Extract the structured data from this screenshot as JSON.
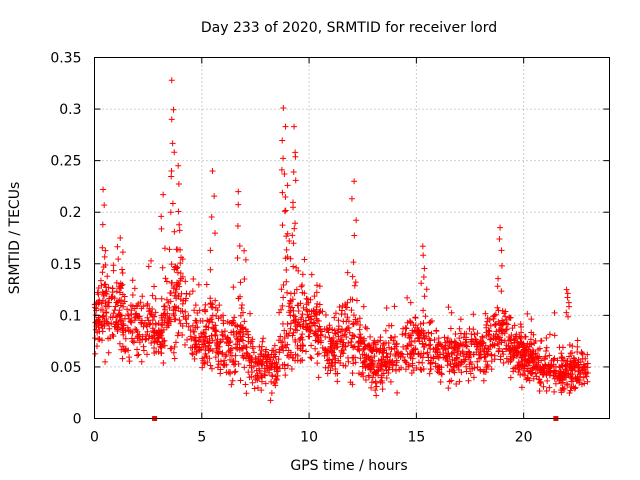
{
  "chart_data": {
    "type": "scatter",
    "title": "Day 233 of 2020, SRMTID for receiver lord",
    "xlabel": "GPS time / hours",
    "ylabel": "SRMTID / TECUs",
    "xlim": [
      0,
      24
    ],
    "ylim": [
      0,
      0.35
    ],
    "xticks": [
      0,
      5,
      10,
      15,
      20
    ],
    "xtick_labels": [
      "0",
      "5",
      "10",
      "15",
      "20"
    ],
    "yticks": [
      0,
      0.05,
      0.1,
      0.15,
      0.2,
      0.25,
      0.3,
      0.35
    ],
    "ytick_labels": [
      "0",
      "0.05",
      "0.1",
      "0.15",
      "0.2",
      "0.25",
      "0.3",
      "0.35"
    ],
    "grid": true,
    "marker": "plus",
    "color": "#ff0000",
    "gap_markers_x": [
      2.8,
      21.5
    ],
    "peaks": [
      {
        "x": 3.6,
        "y": 0.328
      },
      {
        "x": 3.6,
        "y": 0.29
      },
      {
        "x": 8.8,
        "y": 0.301
      },
      {
        "x": 9.3,
        "y": 0.283
      },
      {
        "x": 8.9,
        "y": 0.283
      },
      {
        "x": 9.35,
        "y": 0.258
      },
      {
        "x": 3.9,
        "y": 0.245
      },
      {
        "x": 5.5,
        "y": 0.24
      },
      {
        "x": 8.85,
        "y": 0.237
      },
      {
        "x": 12.1,
        "y": 0.23
      },
      {
        "x": 0.4,
        "y": 0.222
      },
      {
        "x": 6.7,
        "y": 0.22
      },
      {
        "x": 3.2,
        "y": 0.217
      },
      {
        "x": 18.9,
        "y": 0.185
      },
      {
        "x": 15.3,
        "y": 0.167
      },
      {
        "x": 1.2,
        "y": 0.175
      },
      {
        "x": 22.0,
        "y": 0.125
      }
    ],
    "envelope": {
      "x": [
        0,
        0.5,
        1,
        1.5,
        2,
        2.5,
        3,
        3.5,
        4,
        4.5,
        5,
        5.5,
        6,
        6.5,
        7,
        7.5,
        8,
        8.5,
        9,
        9.5,
        10,
        10.5,
        11,
        11.5,
        12,
        12.5,
        13,
        13.5,
        14,
        14.5,
        15,
        15.5,
        16,
        16.5,
        17,
        17.5,
        18,
        18.5,
        19,
        19.5,
        20,
        20.5,
        21,
        21.5,
        22,
        22.5,
        23
      ],
      "center": [
        0.095,
        0.11,
        0.105,
        0.09,
        0.085,
        0.09,
        0.075,
        0.1,
        0.13,
        0.085,
        0.075,
        0.085,
        0.07,
        0.07,
        0.075,
        0.05,
        0.05,
        0.05,
        0.085,
        0.09,
        0.095,
        0.085,
        0.065,
        0.075,
        0.085,
        0.06,
        0.055,
        0.055,
        0.065,
        0.07,
        0.075,
        0.075,
        0.06,
        0.065,
        0.06,
        0.065,
        0.07,
        0.075,
        0.08,
        0.065,
        0.06,
        0.055,
        0.05,
        0.045,
        0.045,
        0.05,
        0.045
      ],
      "spread": [
        0.035,
        0.05,
        0.04,
        0.035,
        0.035,
        0.035,
        0.03,
        0.05,
        0.06,
        0.03,
        0.03,
        0.04,
        0.035,
        0.035,
        0.045,
        0.025,
        0.025,
        0.025,
        0.06,
        0.05,
        0.045,
        0.04,
        0.03,
        0.035,
        0.05,
        0.03,
        0.03,
        0.03,
        0.03,
        0.03,
        0.035,
        0.03,
        0.025,
        0.03,
        0.025,
        0.03,
        0.03,
        0.03,
        0.035,
        0.03,
        0.025,
        0.025,
        0.025,
        0.025,
        0.025,
        0.025,
        0.02
      ]
    },
    "points_per_hour": 95
  }
}
